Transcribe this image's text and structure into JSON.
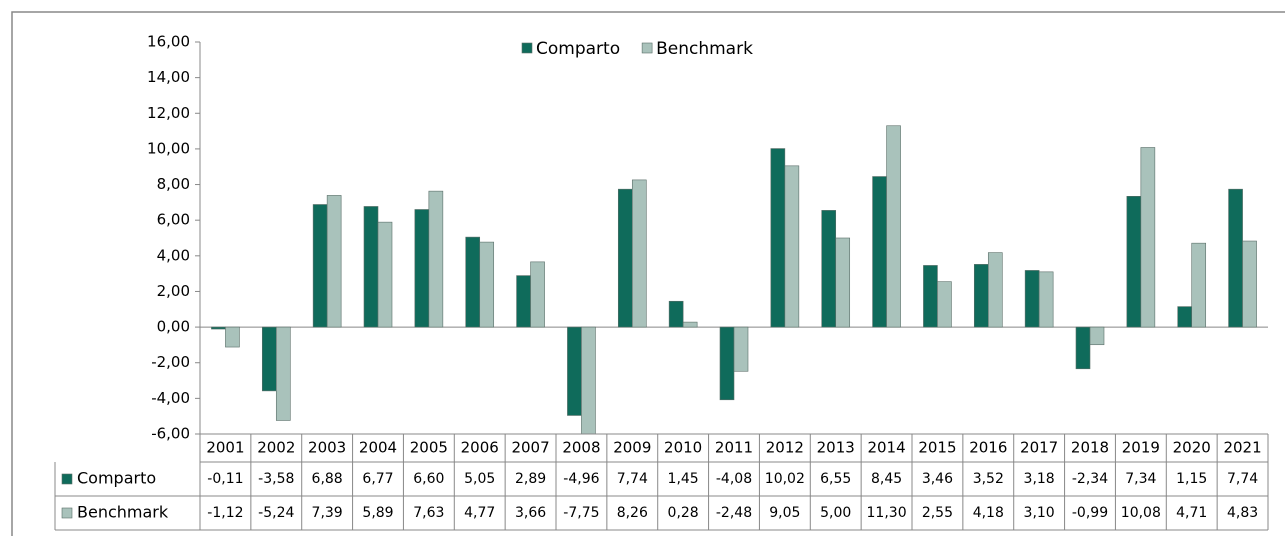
{
  "chart_data": {
    "type": "bar",
    "categories": [
      "2001",
      "2002",
      "2003",
      "2004",
      "2005",
      "2006",
      "2007",
      "2008",
      "2009",
      "2010",
      "2011",
      "2012",
      "2013",
      "2014",
      "2015",
      "2016",
      "2017",
      "2018",
      "2019",
      "2020",
      "2021"
    ],
    "series": [
      {
        "name": "Comparto",
        "color": "#0f6b5b",
        "values": [
          -0.11,
          -3.58,
          6.88,
          6.77,
          6.6,
          5.05,
          2.89,
          -4.96,
          7.74,
          1.45,
          -4.08,
          10.02,
          6.55,
          8.45,
          3.46,
          3.52,
          3.18,
          -2.34,
          7.34,
          1.15,
          7.74
        ],
        "value_labels": [
          "-0,11",
          "-3,58",
          "6,88",
          "6,77",
          "6,60",
          "5,05",
          "2,89",
          "-4,96",
          "7,74",
          "1,45",
          "-4,08",
          "10,02",
          "6,55",
          "8,45",
          "3,46",
          "3,52",
          "3,18",
          "-2,34",
          "7,34",
          "1,15",
          "7,74"
        ]
      },
      {
        "name": "Benchmark",
        "color": "#a9c2bb",
        "values": [
          -1.12,
          -5.24,
          7.39,
          5.89,
          7.63,
          4.77,
          3.66,
          -7.75,
          8.26,
          0.28,
          -2.48,
          9.05,
          5.0,
          11.3,
          2.55,
          4.18,
          3.1,
          -0.99,
          10.08,
          4.71,
          4.83
        ],
        "value_labels": [
          "-1,12",
          "-5,24",
          "7,39",
          "5,89",
          "7,63",
          "4,77",
          "3,66",
          "-7,75",
          "8,26",
          "0,28",
          "-2,48",
          "9,05",
          "5,00",
          "11,30",
          "2,55",
          "4,18",
          "3,10",
          "-0,99",
          "10,08",
          "4,71",
          "4,83"
        ]
      }
    ],
    "ylim": [
      -6,
      16
    ],
    "yticks": [
      {
        "value": -6,
        "label": "-6,00"
      },
      {
        "value": -4,
        "label": "-4,00"
      },
      {
        "value": -2,
        "label": "-2,00"
      },
      {
        "value": 0,
        "label": "0,00"
      },
      {
        "value": 2,
        "label": "2,00"
      },
      {
        "value": 4,
        "label": "4,00"
      },
      {
        "value": 6,
        "label": "6,00"
      },
      {
        "value": 8,
        "label": "8,00"
      },
      {
        "value": 10,
        "label": "10,00"
      },
      {
        "value": 12,
        "label": "12,00"
      },
      {
        "value": 14,
        "label": "14,00"
      },
      {
        "value": 16,
        "label": "16,00"
      }
    ],
    "grid": false,
    "legend": "top"
  }
}
